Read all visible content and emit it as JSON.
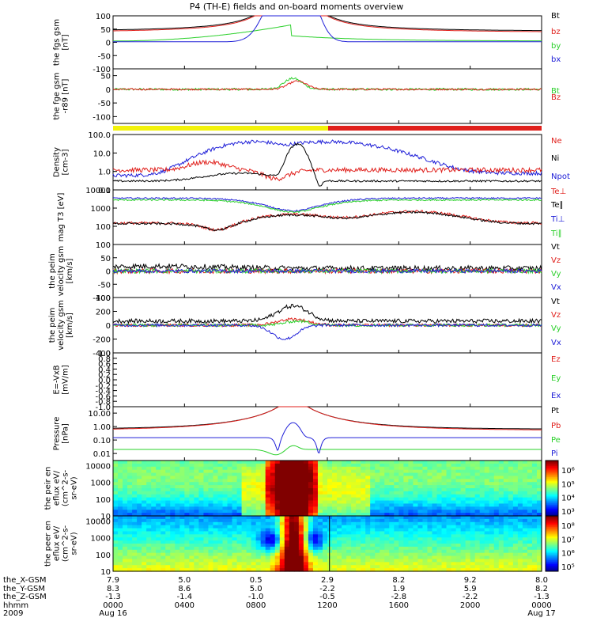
{
  "title": "P4 (TH-E) fields and on-board moments overview",
  "colors": {
    "red": "#e0201c",
    "green": "#2ad02a",
    "blue": "#2020d8",
    "black": "#000000",
    "yellow": "#f2f20a"
  },
  "chart_data": [
    {
      "type": "line",
      "ylabel": "the fgs gsm [nT]",
      "ylim": [
        -100,
        100
      ],
      "yticks": [
        "100",
        "50",
        "0",
        "-50",
        "-100"
      ],
      "tickvals": [
        100,
        50,
        0,
        -50,
        -100
      ],
      "legend": [
        {
          "name": "Bt",
          "color": "black"
        },
        {
          "name": "bz",
          "color": "red"
        },
        {
          "name": "by",
          "color": "green"
        },
        {
          "name": "bx",
          "color": "blue"
        }
      ]
    },
    {
      "type": "line",
      "ylabel": "the fge gsm -r89 [nT]",
      "ylim": [
        -125,
        75
      ],
      "yticks": [
        "50",
        "0",
        "-50",
        "-100"
      ],
      "tickvals": [
        50,
        0,
        -50,
        -100
      ],
      "legend": [
        {
          "name": "Bt",
          "color": "green"
        },
        {
          "name": "Bz",
          "color": "red"
        }
      ]
    },
    {
      "type": "line",
      "ylabel": "Density [cm-3]",
      "ylim": [
        0.1,
        100
      ],
      "log": true,
      "yticks": [
        "100.0",
        "10.0",
        "1.0",
        "0.1"
      ],
      "tickvals": [
        100,
        10,
        1,
        0.1
      ],
      "legend": [
        {
          "name": "Ne",
          "color": "red"
        },
        {
          "name": "Ni",
          "color": "black"
        },
        {
          "name": "Npot",
          "color": "blue"
        }
      ]
    },
    {
      "type": "line",
      "ylabel": "mag T3 [eV]",
      "ylim": [
        10,
        10000
      ],
      "log": true,
      "yticks": [
        "10000",
        "1000",
        "100"
      ],
      "tickvals": [
        10000,
        1000,
        100
      ],
      "legend": [
        {
          "name": "Te⊥",
          "color": "red"
        },
        {
          "name": "Te∥",
          "color": "black"
        },
        {
          "name": "Ti⊥",
          "color": "blue"
        },
        {
          "name": "Ti∥",
          "color": "green"
        }
      ]
    },
    {
      "type": "line",
      "ylabel": "the peim velocity gsm [km/s]",
      "ylim": [
        -100,
        100
      ],
      "yticks": [
        "100",
        "50",
        "0",
        "-50",
        "-100"
      ],
      "tickvals": [
        100,
        50,
        0,
        -50,
        -100
      ],
      "legend": [
        {
          "name": "Vt",
          "color": "black"
        },
        {
          "name": "Vz",
          "color": "red"
        },
        {
          "name": "Vy",
          "color": "green"
        },
        {
          "name": "Vx",
          "color": "blue"
        }
      ]
    },
    {
      "type": "line",
      "ylabel": "the peim velocity gsm [km/s]",
      "ylim": [
        -400,
        400
      ],
      "yticks": [
        "400",
        "200",
        "0",
        "-200",
        "-400"
      ],
      "tickvals": [
        400,
        200,
        0,
        -200,
        -400
      ],
      "legend": [
        {
          "name": "Vt",
          "color": "black"
        },
        {
          "name": "Vz",
          "color": "red"
        },
        {
          "name": "Vy",
          "color": "green"
        },
        {
          "name": "Vx",
          "color": "blue"
        }
      ]
    },
    {
      "type": "line",
      "ylabel": "E=-VxB [mV/m]",
      "ylim": [
        -1,
        1
      ],
      "yticks": [
        "1.0",
        "0.8",
        "0.6",
        "0.4",
        "0.2",
        "0.0",
        "-0.2",
        "-0.4",
        "-0.6",
        "-0.8",
        "-1.0"
      ],
      "tickvals": [
        1,
        0.8,
        0.6,
        0.4,
        0.2,
        0,
        -0.2,
        -0.4,
        -0.6,
        -0.8,
        -1
      ],
      "legend": [
        {
          "name": "Ez",
          "color": "red"
        },
        {
          "name": "Ey",
          "color": "green"
        },
        {
          "name": "Ex",
          "color": "blue"
        }
      ]
    },
    {
      "type": "line",
      "ylabel": "Pressure [nPa]",
      "ylim": [
        0.003,
        30
      ],
      "log": true,
      "yticks": [
        "10.00",
        "1.00",
        "0.10",
        "0.01"
      ],
      "tickvals": [
        10,
        1,
        0.1,
        0.01
      ],
      "legend": [
        {
          "name": "Pt",
          "color": "black"
        },
        {
          "name": "Pb",
          "color": "red"
        },
        {
          "name": "Pe",
          "color": "green"
        },
        {
          "name": "Pi",
          "color": "blue"
        }
      ]
    },
    {
      "type": "heatmap",
      "ylabel": "the peir en eflux eV/ (cm^2-s- sr-eV)",
      "ylim": [
        10,
        20000
      ],
      "log": true,
      "yticks": [
        "10000",
        "1000",
        "100",
        "10"
      ],
      "tickvals": [
        10000,
        1000,
        100,
        10
      ],
      "colorbar_ticks": [
        "10⁶",
        "10⁵",
        "10⁴",
        "10³"
      ]
    },
    {
      "type": "heatmap",
      "ylabel": "the peer en eflux eV/ (cm^2-s- sr-eV)",
      "ylim": [
        10,
        20000
      ],
      "log": true,
      "yticks": [
        "10000",
        "1000",
        "100",
        "10"
      ],
      "tickvals": [
        10000,
        1000,
        100,
        10
      ],
      "colorbar_ticks": [
        "10⁸",
        "10⁷",
        "10⁶",
        "10⁵"
      ]
    }
  ],
  "footer": {
    "row_labels": [
      "the_X-GSM",
      "the_Y-GSM",
      "the_Z-GSM",
      "hhmm",
      "2009"
    ],
    "columns": [
      [
        "7.9",
        "8.3",
        "-1.3",
        "0000",
        "Aug 16"
      ],
      [
        "5.0",
        "8.6",
        "-1.4",
        "0400",
        ""
      ],
      [
        "0.5",
        "5.0",
        "-1.0",
        "0800",
        ""
      ],
      [
        "2.9",
        "-2.2",
        "-0.5",
        "1200",
        ""
      ],
      [
        "8.2",
        "1.9",
        "-2.8",
        "1600",
        ""
      ],
      [
        "9.2",
        "5.9",
        "-2.2",
        "2000",
        ""
      ],
      [
        "8.0",
        "8.2",
        "-1.3",
        "0000",
        "Aug 17"
      ]
    ]
  }
}
